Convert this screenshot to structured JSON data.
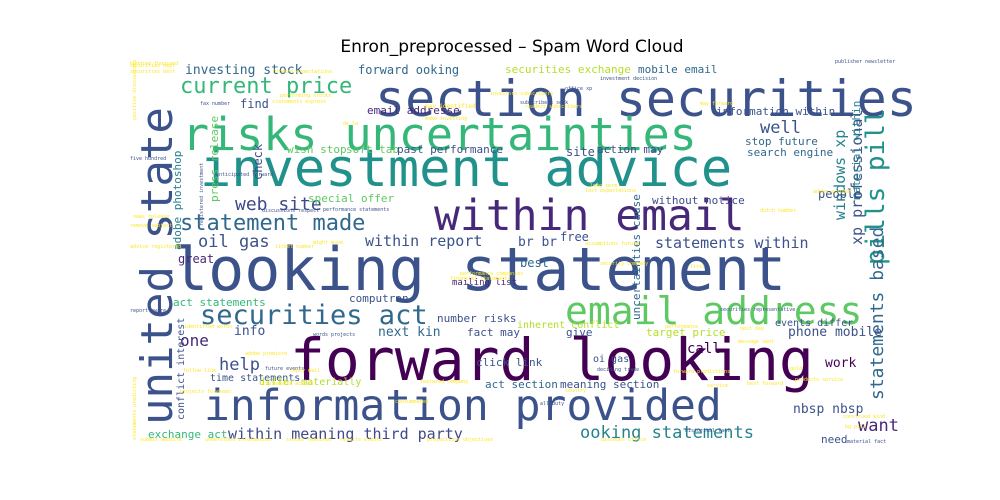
{
  "chart_data": {
    "type": "wordcloud",
    "title": "Enron_preprocessed – Spam Word Cloud",
    "colormap": "viridis",
    "background": "#ffffff",
    "words": [
      {
        "text": "looking statement",
        "color": "#3b528b"
      },
      {
        "text": "forward looking",
        "color": "#440154"
      },
      {
        "text": "investment advice",
        "color": "#21918c"
      },
      {
        "text": "section securities",
        "color": "#3b528b"
      },
      {
        "text": "risks uncertainties",
        "color": "#35b779"
      },
      {
        "text": "within email",
        "color": "#482878"
      },
      {
        "text": "information provided",
        "color": "#3b528b"
      },
      {
        "text": "united state",
        "color": "#3b528b"
      },
      {
        "text": "email address",
        "color": "#5ec962"
      },
      {
        "text": "securities act",
        "color": "#31688e"
      },
      {
        "text": "statement made",
        "color": "#31688e"
      },
      {
        "text": "current price",
        "color": "#35b779"
      },
      {
        "text": "pills pill",
        "color": "#21918c"
      },
      {
        "text": "statements based",
        "color": "#31688e"
      },
      {
        "text": "web site",
        "color": "#3e4989"
      },
      {
        "text": "oil gas",
        "color": "#3b528b"
      },
      {
        "text": "ooking statements",
        "color": "#26828e"
      },
      {
        "text": "within meaning third party",
        "color": "#3e4989"
      },
      {
        "text": "statements within",
        "color": "#3b528b"
      },
      {
        "text": "within report",
        "color": "#3b528b"
      },
      {
        "text": "xp professional",
        "color": "#3b528b"
      },
      {
        "text": "windows xp",
        "color": "#26828e"
      },
      {
        "text": "investing stock",
        "color": "#31688e"
      },
      {
        "text": "well",
        "color": "#3b528b"
      },
      {
        "text": "help",
        "color": "#3b528b"
      },
      {
        "text": "want",
        "color": "#482878"
      },
      {
        "text": "one",
        "color": "#482878"
      },
      {
        "text": "br br",
        "color": "#3b528b"
      },
      {
        "text": "next kin",
        "color": "#31688e"
      },
      {
        "text": "forward ooking",
        "color": "#31688e"
      },
      {
        "text": "securities exchange",
        "color": "#b5de2b"
      },
      {
        "text": "mobile email",
        "color": "#31688e"
      },
      {
        "text": "press release",
        "color": "#5ec962"
      },
      {
        "text": "adobe photoshop",
        "color": "#26828e"
      },
      {
        "text": "special offer",
        "color": "#5ec962"
      },
      {
        "text": "wish stop",
        "color": "#5ec962"
      },
      {
        "text": "soft tab",
        "color": "#5ec962"
      },
      {
        "text": "past performance",
        "color": "#3b528b"
      },
      {
        "text": "information within",
        "color": "#3b528b"
      },
      {
        "text": "stop future",
        "color": "#31688e"
      },
      {
        "text": "search engine",
        "color": "#31688e"
      },
      {
        "text": "material within",
        "color": "#26828e"
      },
      {
        "text": "email addresse",
        "color": "#482878"
      },
      {
        "text": "action may",
        "color": "#3e4989"
      },
      {
        "text": "site",
        "color": "#3b528b"
      },
      {
        "text": "find",
        "color": "#3b528b"
      },
      {
        "text": "check",
        "color": "#3b528b"
      },
      {
        "text": "without notice",
        "color": "#3e4989"
      },
      {
        "text": "people",
        "color": "#3b528b"
      },
      {
        "text": "great",
        "color": "#482878"
      },
      {
        "text": "free",
        "color": "#3b528b"
      },
      {
        "text": "best",
        "color": "#31688e"
      },
      {
        "text": "uncertainties cause",
        "color": "#31688e"
      },
      {
        "text": "act statements",
        "color": "#35b779"
      },
      {
        "text": "computron",
        "color": "#3b528b"
      },
      {
        "text": "mailing list",
        "color": "#482878"
      },
      {
        "text": "fact may",
        "color": "#3b528b"
      },
      {
        "text": "inherent conflict",
        "color": "#b5de2b"
      },
      {
        "text": "number risks",
        "color": "#3b528b"
      },
      {
        "text": "click link",
        "color": "#3b528b"
      },
      {
        "text": "target price",
        "color": "#b5de2b"
      },
      {
        "text": "phone mobile",
        "color": "#3b528b"
      },
      {
        "text": "events differ",
        "color": "#3b528b"
      },
      {
        "text": "info",
        "color": "#3b528b"
      },
      {
        "text": "call",
        "color": "#440154"
      },
      {
        "text": "give",
        "color": "#3b528b"
      },
      {
        "text": "conflict interest",
        "color": "#3b528b"
      },
      {
        "text": "time statements",
        "color": "#3b528b"
      },
      {
        "text": "differ materially",
        "color": "#b5de2b"
      },
      {
        "text": "act section",
        "color": "#31688e"
      },
      {
        "text": "meaning section",
        "color": "#3b528b"
      },
      {
        "text": "oi gas",
        "color": "#3b528b"
      },
      {
        "text": "nbsp nbsp",
        "color": "#3b528b"
      },
      {
        "text": "work",
        "color": "#440154"
      },
      {
        "text": "need",
        "color": "#3b528b"
      },
      {
        "text": "exchange act",
        "color": "#35b779"
      },
      {
        "text": "registered investment",
        "color": "#3b528b"
      },
      {
        "text": "anticipated forward",
        "color": "#3b528b"
      },
      {
        "text": "deciding trade",
        "color": "#3b528b"
      },
      {
        "text": "performance statements",
        "color": "#3b528b"
      },
      {
        "text": "discussions respect",
        "color": "#3b528b"
      },
      {
        "text": "securities representative",
        "color": "#3b528b"
      },
      {
        "text": "words projects",
        "color": "#3b528b"
      },
      {
        "text": "report aware",
        "color": "#3b528b"
      },
      {
        "text": "five hundred",
        "color": "#3b528b"
      },
      {
        "text": "fax number",
        "color": "#3b528b"
      },
      {
        "text": "future events",
        "color": "#3b528b"
      },
      {
        "text": "all duty",
        "color": "#3b528b"
      },
      {
        "text": "historical fact",
        "color": "#3b528b"
      },
      {
        "text": "material fact",
        "color": "#3b528b"
      },
      {
        "text": "investment decision",
        "color": "#3b528b"
      },
      {
        "text": "subscribers seek",
        "color": "#3b528b"
      },
      {
        "text": "office xp",
        "color": "#3b528b"
      },
      {
        "text": "publisher newsletter",
        "color": "#3b528b"
      },
      {
        "text": "hundred thousand",
        "color": "#fde725"
      },
      {
        "text": "remove subject",
        "color": "#fde725"
      },
      {
        "text": "may identified",
        "color": "#fde725"
      },
      {
        "text": "forward expectations",
        "color": "#fde725"
      },
      {
        "text": "securities best",
        "color": "#fde725"
      },
      {
        "text": "adobe premiere",
        "color": "#fde725"
      },
      {
        "text": "follow link",
        "color": "#fde725"
      },
      {
        "text": "reply mail",
        "color": "#fde725"
      },
      {
        "text": "discount office",
        "color": "#fde725"
      },
      {
        "text": "consummated",
        "color": "#fde725"
      },
      {
        "text": "ticket number",
        "color": "#fde725"
      },
      {
        "text": "projections objectives",
        "color": "#fde725"
      },
      {
        "text": "financial statements",
        "color": "#fde725"
      },
      {
        "text": "construed kind",
        "color": "#fde725"
      },
      {
        "text": "identified words",
        "color": "#fde725"
      },
      {
        "text": "stocks featured",
        "color": "#fde725"
      },
      {
        "text": "results events",
        "color": "#fde725"
      },
      {
        "text": "understood information",
        "color": "#fde725"
      },
      {
        "text": "submit website",
        "color": "#fde725"
      },
      {
        "text": "assumptions future",
        "color": "#fde725"
      },
      {
        "text": "forward predictions",
        "color": "#fde725"
      },
      {
        "text": "featured company",
        "color": "#fde725"
      },
      {
        "text": "security company",
        "color": "#fde725"
      },
      {
        "text": "performance companies",
        "color": "#fde725"
      },
      {
        "text": "investors subscribers",
        "color": "#fde725"
      },
      {
        "text": "news release",
        "color": "#fde725"
      },
      {
        "text": "statements express",
        "color": "#fde725"
      },
      {
        "text": "readers subscribers",
        "color": "#fde725"
      },
      {
        "text": "make investing",
        "color": "#fde725"
      },
      {
        "text": "statements action",
        "color": "#fde725"
      },
      {
        "text": "projects foreseen",
        "color": "#fde725"
      },
      {
        "text": "country",
        "color": "#fde725"
      },
      {
        "text": "service",
        "color": "#fde725"
      },
      {
        "text": "products service",
        "color": "#fde725"
      },
      {
        "text": "message sent",
        "color": "#fde725"
      },
      {
        "text": "best forward",
        "color": "#fde725"
      },
      {
        "text": "last expectations",
        "color": "#fde725"
      },
      {
        "text": "long term",
        "color": "#fde725"
      },
      {
        "text": "gold",
        "color": "#fde725"
      },
      {
        "text": "first",
        "color": "#fde725"
      },
      {
        "text": "next day",
        "color": "#fde725"
      },
      {
        "text": "de la",
        "color": "#fde725"
      },
      {
        "text": "may forward",
        "color": "#fde725"
      },
      {
        "text": "bg pill",
        "color": "#fde725"
      },
      {
        "text": "adobe acrobat",
        "color": "#fde725"
      },
      {
        "text": "might move",
        "color": "#fde725"
      },
      {
        "text": "dutch number",
        "color": "#fde725"
      },
      {
        "text": "advice registered",
        "color": "#fde725"
      },
      {
        "text": "positive discussions",
        "color": "#fde725"
      },
      {
        "text": "statements predicting",
        "color": "#fde725"
      },
      {
        "text": "securities dept",
        "color": "#fde725"
      },
      {
        "text": "performing stocks",
        "color": "#fde725"
      },
      {
        "text": "performance",
        "color": "#fde725"
      }
    ]
  }
}
